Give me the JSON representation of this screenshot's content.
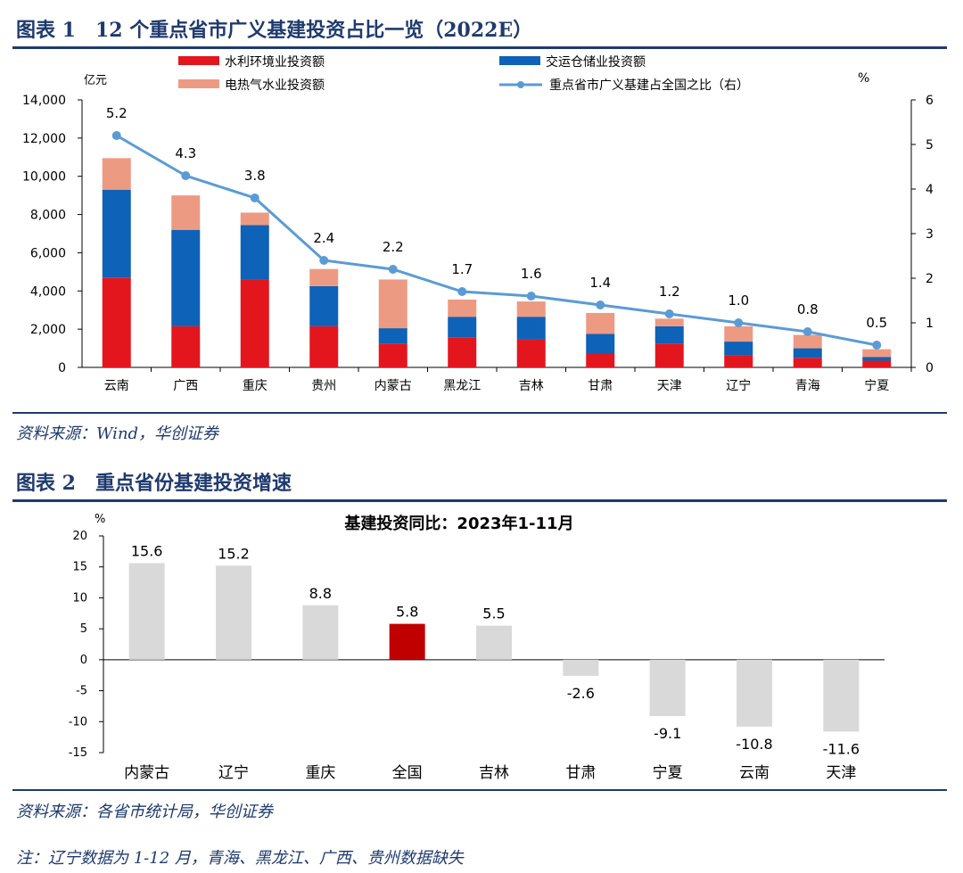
{
  "figure1": {
    "heading": "图表 1　12 个重点省市广义基建投资占比一览（2022E）",
    "source": "资料来源：Wind，华创证券",
    "chart_data": {
      "type": "bar",
      "stacked": true,
      "categories": [
        "云南",
        "广西",
        "重庆",
        "贵州",
        "内蒙古",
        "黑龙江",
        "吉林",
        "甘肃",
        "天津",
        "辽宁",
        "青海",
        "宁夏"
      ],
      "left_unit": "亿元",
      "right_unit": "%",
      "left_ticks": [
        "0",
        "2,000",
        "4,000",
        "6,000",
        "8,000",
        "10,000",
        "12,000",
        "14,000"
      ],
      "right_ticks": [
        "0",
        "1",
        "2",
        "3",
        "4",
        "5",
        "6"
      ],
      "ylim_left": [
        0,
        14000
      ],
      "ylim_right": [
        0,
        6
      ],
      "series": [
        {
          "name": "水利环境业投资额",
          "color": "#e3161e",
          "values": [
            4700,
            2150,
            4600,
            2150,
            1250,
            1550,
            1450,
            700,
            1250,
            650,
            500,
            350
          ]
        },
        {
          "name": "交运仓储业投资额",
          "color": "#0e62b7",
          "values": [
            4600,
            5050,
            2850,
            2100,
            800,
            1100,
            1200,
            1050,
            900,
            700,
            500,
            200
          ]
        },
        {
          "name": "电热气水业投资额",
          "color": "#ed9a83",
          "values": [
            1650,
            1800,
            650,
            900,
            2550,
            900,
            800,
            1100,
            400,
            800,
            700,
            400
          ]
        }
      ],
      "line": {
        "name": "重点省市广义基建占全国之比（右）",
        "color": "#5b9bd5",
        "values": [
          5.2,
          4.3,
          3.8,
          2.4,
          2.2,
          1.7,
          1.6,
          1.4,
          1.2,
          1.0,
          0.8,
          0.5
        ],
        "labels": [
          "5.2",
          "4.3",
          "3.8",
          "2.4",
          "2.2",
          "1.7",
          "1.6",
          "1.4",
          "1.2",
          "1.0",
          "0.8",
          "0.5"
        ]
      },
      "legend_position": "top"
    }
  },
  "figure2": {
    "heading": "图表 2　重点省份基建投资增速",
    "source": "资料来源：各省市统计局，华创证券",
    "note": "注：辽宁数据为 1-12 月，青海、黑龙江、广西、贵州数据缺失",
    "chart_data": {
      "type": "bar",
      "title": "基建投资同比：2023年1-11月",
      "unit": "%",
      "categories": [
        "内蒙古",
        "辽宁",
        "重庆",
        "全国",
        "吉林",
        "甘肃",
        "宁夏",
        "云南",
        "天津"
      ],
      "values": [
        15.6,
        15.2,
        8.8,
        5.8,
        5.5,
        -2.6,
        -9.1,
        -10.8,
        -11.6
      ],
      "labels": [
        "15.6",
        "15.2",
        "8.8",
        "5.8",
        "5.5",
        "-2.6",
        "-9.1",
        "-10.8",
        "-11.6"
      ],
      "ylim": [
        -15,
        20
      ],
      "y_ticks": [
        "20",
        "15",
        "10",
        "5",
        "0",
        "-5",
        "-10",
        "-15"
      ],
      "default_color": "#d9d9d9",
      "highlight_color": "#c00000",
      "highlight_category": "全国"
    }
  }
}
